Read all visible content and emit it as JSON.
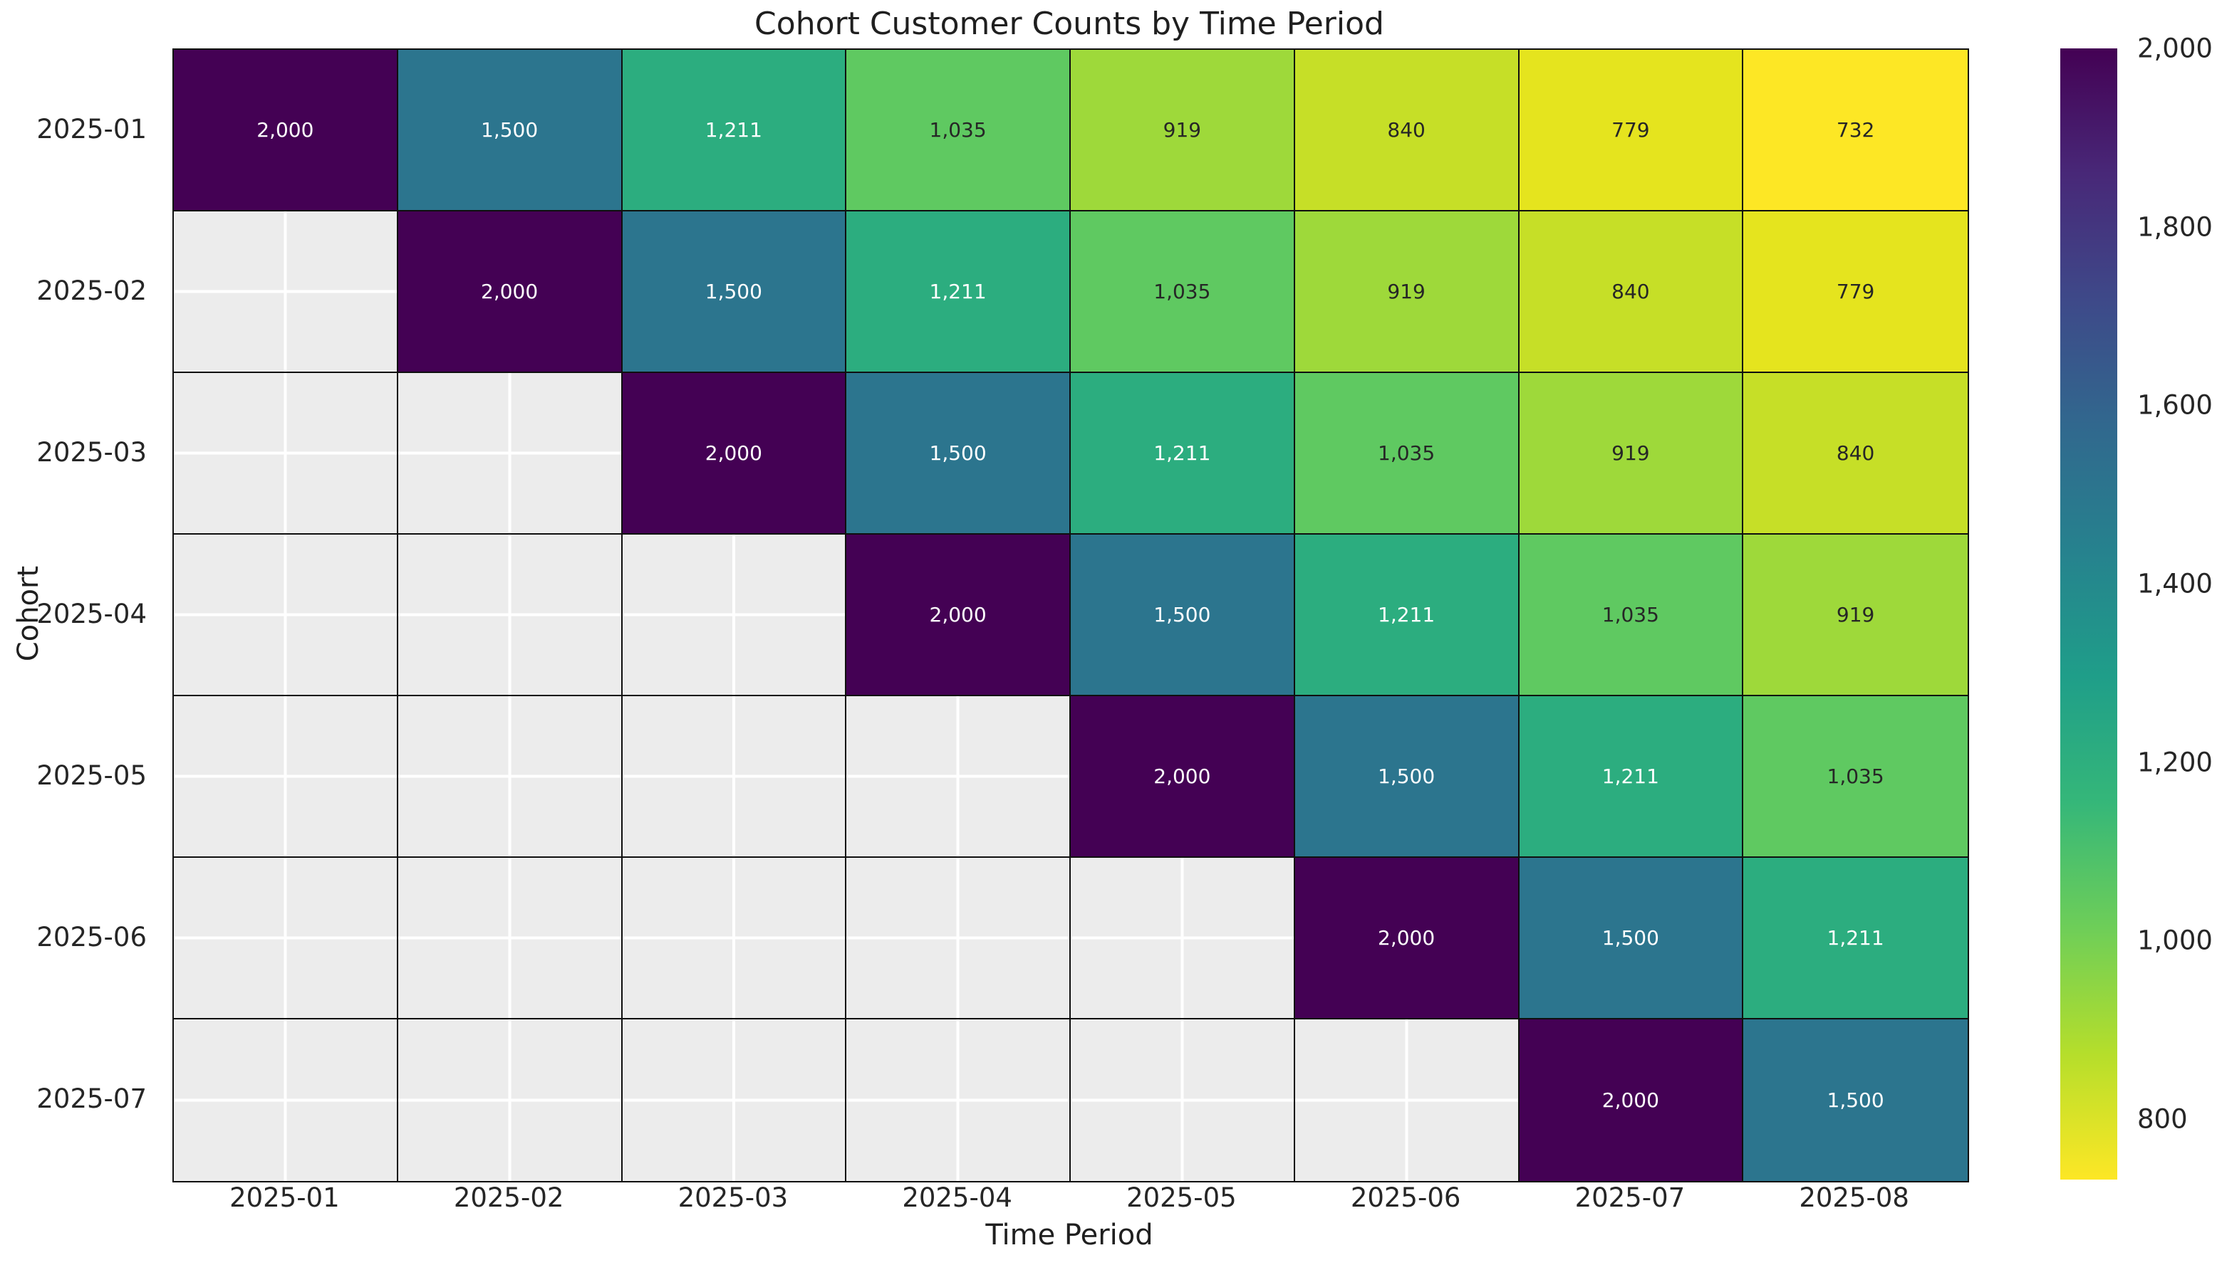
{
  "chart_data": {
    "type": "heatmap",
    "title": "Cohort Customer Counts by Time Period",
    "xlabel": "Time Period",
    "ylabel": "Cohort",
    "x_categories": [
      "2025-01",
      "2025-02",
      "2025-03",
      "2025-04",
      "2025-05",
      "2025-06",
      "2025-07",
      "2025-08"
    ],
    "y_categories": [
      "2025-01",
      "2025-02",
      "2025-03",
      "2025-04",
      "2025-05",
      "2025-06",
      "2025-07"
    ],
    "values": [
      [
        2000,
        1500,
        1211,
        1035,
        919,
        840,
        779,
        732
      ],
      [
        null,
        2000,
        1500,
        1211,
        1035,
        919,
        840,
        779
      ],
      [
        null,
        null,
        2000,
        1500,
        1211,
        1035,
        919,
        840
      ],
      [
        null,
        null,
        null,
        2000,
        1500,
        1211,
        1035,
        919
      ],
      [
        null,
        null,
        null,
        null,
        2000,
        1500,
        1211,
        1035
      ],
      [
        null,
        null,
        null,
        null,
        null,
        2000,
        1500,
        1211
      ],
      [
        null,
        null,
        null,
        null,
        null,
        null,
        2000,
        1500
      ]
    ],
    "labels": [
      [
        "2,000",
        "1,500",
        "1,211",
        "1,035",
        "919",
        "840",
        "779",
        "732"
      ],
      [
        "",
        "2,000",
        "1,500",
        "1,211",
        "1,035",
        "919",
        "840",
        "779"
      ],
      [
        "",
        "",
        "2,000",
        "1,500",
        "1,211",
        "1,035",
        "919",
        "840"
      ],
      [
        "",
        "",
        "",
        "2,000",
        "1,500",
        "1,211",
        "1,035",
        "919"
      ],
      [
        "",
        "",
        "",
        "",
        "2,000",
        "1,500",
        "1,211",
        "1,035"
      ],
      [
        "",
        "",
        "",
        "",
        "",
        "2,000",
        "1,500",
        "1,211"
      ],
      [
        "",
        "",
        "",
        "",
        "",
        "",
        "2,000",
        "1,500"
      ]
    ],
    "value_colors": {
      "2000": "#440154",
      "1500": "#2c758e",
      "1211": "#2cad7f",
      "1035": "#5fc961",
      "919": "#9ed93a",
      "840": "#c6df27",
      "779": "#e5e41e",
      "732": "#fde725"
    },
    "white_text_values": [
      2000,
      1500,
      1211
    ],
    "colorbar": {
      "vmin": 732,
      "vmax": 2000,
      "colormap": "viridis_r",
      "tick_values": [
        2000,
        1800,
        1600,
        1400,
        1200,
        1000,
        800
      ],
      "tick_labels": [
        "2,000",
        "1,800",
        "1,600",
        "1,400",
        "1,200",
        "1,000",
        "800"
      ],
      "gradient": [
        "#440154",
        "#482878",
        "#3e4989",
        "#31688e",
        "#26828e",
        "#1f9e89",
        "#35b779",
        "#6ece58",
        "#b5de2b",
        "#fde725"
      ]
    },
    "style": {
      "background": "#ffffff",
      "empty_cell_bg": "#ececec",
      "grid_line": "#ffffff",
      "cell_border": "#0f0f0f",
      "text_dark": "#262626",
      "text_light": "#ffffff"
    },
    "layout": {
      "grid_on": true,
      "legend_position": "right-colorbar"
    }
  }
}
